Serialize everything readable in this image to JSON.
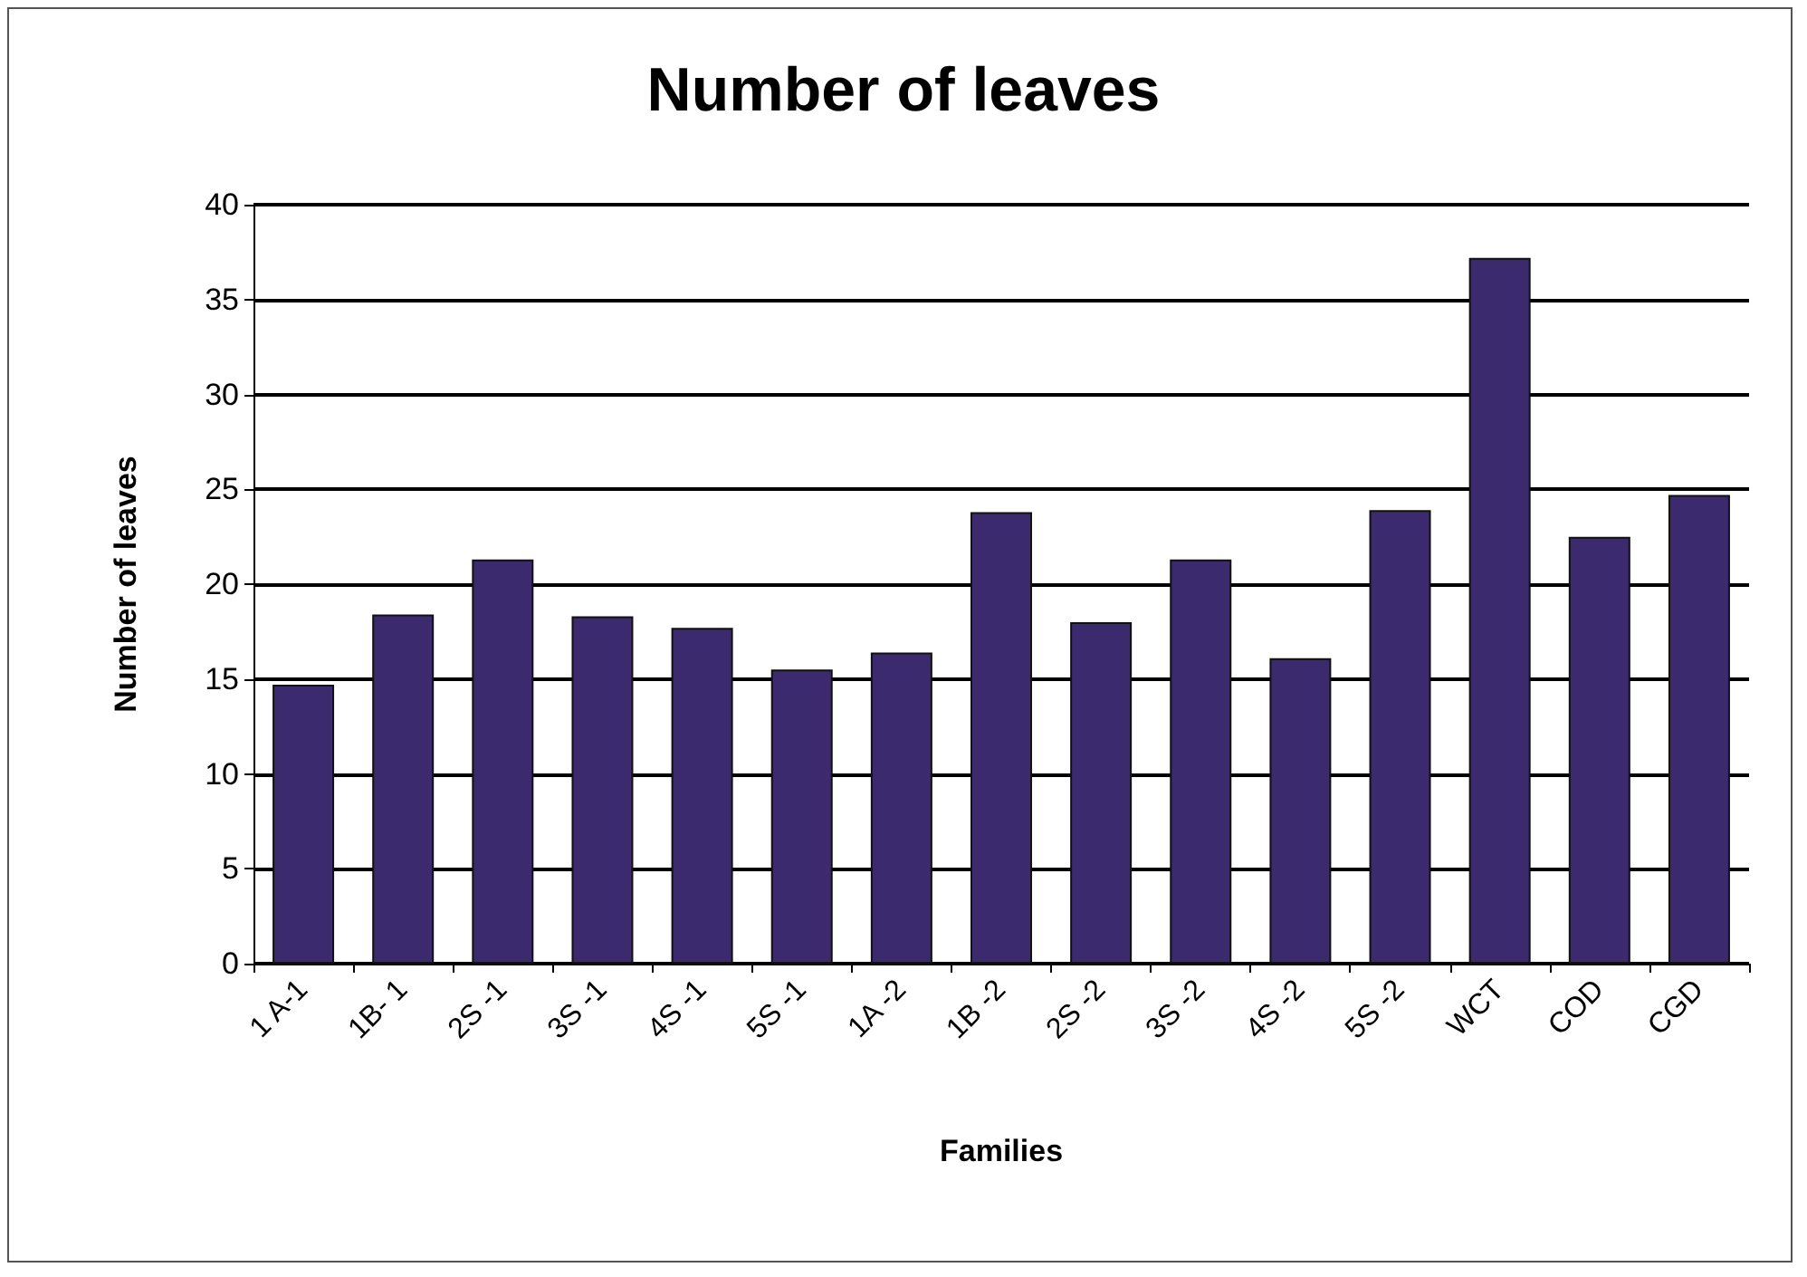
{
  "chart_data": {
    "type": "bar",
    "title": "Number of leaves",
    "xlabel": "Families",
    "ylabel": "Number of leaves",
    "categories": [
      "1 A-1",
      "1B- 1",
      "2S -1",
      "3S -1",
      "4S -1",
      "5S -1",
      "1A -2",
      "1B -2",
      "2S -2",
      "3S -2",
      "4S -2",
      "5S -2",
      "WCT",
      "COD",
      "CGD"
    ],
    "values": [
      14.7,
      18.4,
      21.3,
      18.3,
      17.7,
      15.5,
      16.4,
      23.8,
      18.0,
      21.3,
      16.1,
      23.9,
      37.2,
      22.5,
      24.7
    ],
    "color": "#3b2a6e",
    "ylim": [
      0,
      40
    ],
    "yticks": [
      0,
      5,
      10,
      15,
      20,
      25,
      30,
      35,
      40
    ],
    "grid": "y"
  }
}
